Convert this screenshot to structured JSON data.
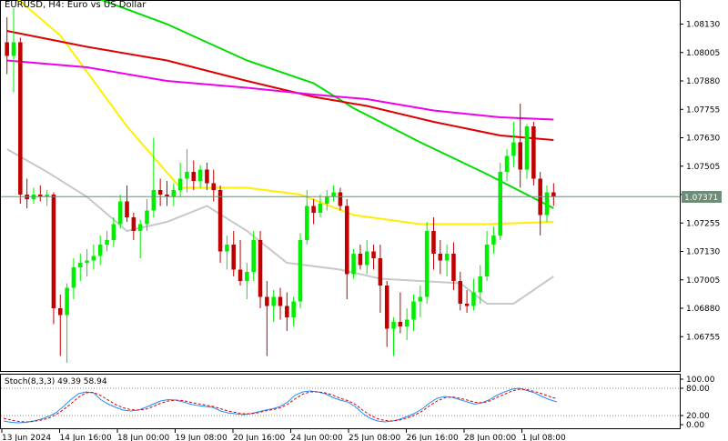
{
  "header": {
    "title": "EURUSD, H4:  Euro vs US Dollar"
  },
  "oscillator": {
    "label": "Stoch(8,3,3) 49.39 58.94",
    "levels": [
      "100.00",
      "80.00",
      "20.00",
      "0.00"
    ]
  },
  "current_price": "1.07371",
  "colors": {
    "bull": "#00ee00",
    "bear": "#c00000",
    "ma_green": "#00dd00",
    "ma_red": "#dd0000",
    "ma_magenta": "#ee00ee",
    "ma_yellow": "#ffee00",
    "ma_silver": "#c8c8c8",
    "stoch_main": "#1e90ff",
    "stoch_signal": "#dd0000",
    "price_line": "#6e8c78"
  },
  "chart_data": {
    "type": "candlestick",
    "symbol": "EURUSD",
    "timeframe": "H4",
    "ylim": [
      1.0662,
      1.0822
    ],
    "y_ticks": [
      "1.08130",
      "1.08005",
      "1.07880",
      "1.07755",
      "1.07630",
      "1.07505",
      "1.07380",
      "1.07255",
      "1.07130",
      "1.07005",
      "1.06880",
      "1.06755"
    ],
    "x_ticks": [
      "13 Jun 2024",
      "14 Jun 16:00",
      "18 Jun 00:00",
      "19 Jun 08:00",
      "20 Jun 16:00",
      "24 Jun 00:00",
      "25 Jun 08:00",
      "26 Jun 16:00",
      "28 Jun 00:00",
      "1 Jul 08:00"
    ],
    "candles": [
      {
        "o": 1.0805,
        "h": 1.0816,
        "l": 1.0791,
        "c": 1.0799
      },
      {
        "o": 1.0799,
        "h": 1.082,
        "l": 1.0783,
        "c": 1.0805
      },
      {
        "o": 1.0805,
        "h": 1.0807,
        "l": 1.0734,
        "c": 1.0738
      },
      {
        "o": 1.0738,
        "h": 1.0745,
        "l": 1.0732,
        "c": 1.0736
      },
      {
        "o": 1.0736,
        "h": 1.0741,
        "l": 1.0734,
        "c": 1.0738
      },
      {
        "o": 1.0738,
        "h": 1.0742,
        "l": 1.0735,
        "c": 1.0737
      },
      {
        "o": 1.0737,
        "h": 1.074,
        "l": 1.0733,
        "c": 1.0738
      },
      {
        "o": 1.0738,
        "h": 1.0739,
        "l": 1.0681,
        "c": 1.0688
      },
      {
        "o": 1.0688,
        "h": 1.0694,
        "l": 1.0667,
        "c": 1.0685
      },
      {
        "o": 1.0685,
        "h": 1.0699,
        "l": 1.0664,
        "c": 1.0697
      },
      {
        "o": 1.0697,
        "h": 1.071,
        "l": 1.0692,
        "c": 1.0706
      },
      {
        "o": 1.0706,
        "h": 1.0712,
        "l": 1.07,
        "c": 1.0708
      },
      {
        "o": 1.0708,
        "h": 1.0714,
        "l": 1.0702,
        "c": 1.0709
      },
      {
        "o": 1.0709,
        "h": 1.0716,
        "l": 1.0705,
        "c": 1.0711
      },
      {
        "o": 1.0711,
        "h": 1.072,
        "l": 1.0707,
        "c": 1.0716
      },
      {
        "o": 1.0716,
        "h": 1.0722,
        "l": 1.0713,
        "c": 1.0718
      },
      {
        "o": 1.0718,
        "h": 1.0728,
        "l": 1.0715,
        "c": 1.0725
      },
      {
        "o": 1.0725,
        "h": 1.0738,
        "l": 1.0723,
        "c": 1.0735
      },
      {
        "o": 1.0735,
        "h": 1.0742,
        "l": 1.0726,
        "c": 1.0728
      },
      {
        "o": 1.0728,
        "h": 1.073,
        "l": 1.0718,
        "c": 1.0722
      },
      {
        "o": 1.0722,
        "h": 1.0727,
        "l": 1.071,
        "c": 1.0725
      },
      {
        "o": 1.0725,
        "h": 1.0736,
        "l": 1.0722,
        "c": 1.0731
      },
      {
        "o": 1.0731,
        "h": 1.0763,
        "l": 1.0728,
        "c": 1.074
      },
      {
        "o": 1.074,
        "h": 1.0745,
        "l": 1.0733,
        "c": 1.0738
      },
      {
        "o": 1.0738,
        "h": 1.0744,
        "l": 1.0733,
        "c": 1.0737
      },
      {
        "o": 1.0737,
        "h": 1.0743,
        "l": 1.0733,
        "c": 1.074
      },
      {
        "o": 1.074,
        "h": 1.0752,
        "l": 1.0737,
        "c": 1.0745
      },
      {
        "o": 1.0745,
        "h": 1.0758,
        "l": 1.0739,
        "c": 1.0748
      },
      {
        "o": 1.0748,
        "h": 1.0753,
        "l": 1.074,
        "c": 1.0744
      },
      {
        "o": 1.0744,
        "h": 1.0751,
        "l": 1.0741,
        "c": 1.0749
      },
      {
        "o": 1.0749,
        "h": 1.0752,
        "l": 1.074,
        "c": 1.0743
      },
      {
        "o": 1.0743,
        "h": 1.0749,
        "l": 1.0735,
        "c": 1.074
      },
      {
        "o": 1.074,
        "h": 1.0742,
        "l": 1.0708,
        "c": 1.0713
      },
      {
        "o": 1.0713,
        "h": 1.072,
        "l": 1.0705,
        "c": 1.0716
      },
      {
        "o": 1.0716,
        "h": 1.0722,
        "l": 1.0702,
        "c": 1.0705
      },
      {
        "o": 1.0705,
        "h": 1.0718,
        "l": 1.0698,
        "c": 1.07
      },
      {
        "o": 1.07,
        "h": 1.0708,
        "l": 1.0692,
        "c": 1.0704
      },
      {
        "o": 1.0704,
        "h": 1.0722,
        "l": 1.07,
        "c": 1.0718
      },
      {
        "o": 1.0718,
        "h": 1.0722,
        "l": 1.0688,
        "c": 1.0693
      },
      {
        "o": 1.0693,
        "h": 1.07,
        "l": 1.0667,
        "c": 1.0689
      },
      {
        "o": 1.0689,
        "h": 1.0696,
        "l": 1.0682,
        "c": 1.0693
      },
      {
        "o": 1.0693,
        "h": 1.0697,
        "l": 1.0683,
        "c": 1.0689
      },
      {
        "o": 1.0689,
        "h": 1.0695,
        "l": 1.0678,
        "c": 1.0684
      },
      {
        "o": 1.0684,
        "h": 1.0693,
        "l": 1.068,
        "c": 1.0691
      },
      {
        "o": 1.0691,
        "h": 1.0721,
        "l": 1.0688,
        "c": 1.0718
      },
      {
        "o": 1.0718,
        "h": 1.074,
        "l": 1.0716,
        "c": 1.0733
      },
      {
        "o": 1.0733,
        "h": 1.0736,
        "l": 1.0725,
        "c": 1.073
      },
      {
        "o": 1.073,
        "h": 1.0738,
        "l": 1.0728,
        "c": 1.0734
      },
      {
        "o": 1.0734,
        "h": 1.074,
        "l": 1.0731,
        "c": 1.0737
      },
      {
        "o": 1.0737,
        "h": 1.0742,
        "l": 1.0735,
        "c": 1.0739
      },
      {
        "o": 1.0739,
        "h": 1.0741,
        "l": 1.0731,
        "c": 1.0733
      },
      {
        "o": 1.0733,
        "h": 1.0736,
        "l": 1.0692,
        "c": 1.0703
      },
      {
        "o": 1.0703,
        "h": 1.0714,
        "l": 1.0701,
        "c": 1.0712
      },
      {
        "o": 1.0712,
        "h": 1.0716,
        "l": 1.0705,
        "c": 1.0707
      },
      {
        "o": 1.0707,
        "h": 1.0718,
        "l": 1.0703,
        "c": 1.0713
      },
      {
        "o": 1.0713,
        "h": 1.0716,
        "l": 1.0705,
        "c": 1.071
      },
      {
        "o": 1.071,
        "h": 1.0716,
        "l": 1.0686,
        "c": 1.0698
      },
      {
        "o": 1.0698,
        "h": 1.07,
        "l": 1.0671,
        "c": 1.0679
      },
      {
        "o": 1.0679,
        "h": 1.0684,
        "l": 1.0667,
        "c": 1.0682
      },
      {
        "o": 1.0682,
        "h": 1.0695,
        "l": 1.0677,
        "c": 1.068
      },
      {
        "o": 1.068,
        "h": 1.0688,
        "l": 1.0674,
        "c": 1.0683
      },
      {
        "o": 1.0683,
        "h": 1.0694,
        "l": 1.0678,
        "c": 1.0691
      },
      {
        "o": 1.0691,
        "h": 1.0698,
        "l": 1.0684,
        "c": 1.0693
      },
      {
        "o": 1.0693,
        "h": 1.0726,
        "l": 1.069,
        "c": 1.0722
      },
      {
        "o": 1.0722,
        "h": 1.0728,
        "l": 1.0705,
        "c": 1.0712
      },
      {
        "o": 1.0712,
        "h": 1.0718,
        "l": 1.0703,
        "c": 1.0709
      },
      {
        "o": 1.0709,
        "h": 1.0716,
        "l": 1.0702,
        "c": 1.0712
      },
      {
        "o": 1.0712,
        "h": 1.0717,
        "l": 1.0696,
        "c": 1.07
      },
      {
        "o": 1.07,
        "h": 1.0704,
        "l": 1.0687,
        "c": 1.069
      },
      {
        "o": 1.069,
        "h": 1.0696,
        "l": 1.0686,
        "c": 1.0689
      },
      {
        "o": 1.0689,
        "h": 1.0701,
        "l": 1.0687,
        "c": 1.0695
      },
      {
        "o": 1.0695,
        "h": 1.0707,
        "l": 1.069,
        "c": 1.0702
      },
      {
        "o": 1.0702,
        "h": 1.0722,
        "l": 1.07,
        "c": 1.0716
      },
      {
        "o": 1.0716,
        "h": 1.0724,
        "l": 1.0712,
        "c": 1.072
      },
      {
        "o": 1.072,
        "h": 1.0752,
        "l": 1.0718,
        "c": 1.0748
      },
      {
        "o": 1.0748,
        "h": 1.0758,
        "l": 1.0744,
        "c": 1.0755
      },
      {
        "o": 1.0755,
        "h": 1.077,
        "l": 1.075,
        "c": 1.0761
      },
      {
        "o": 1.0761,
        "h": 1.0778,
        "l": 1.0741,
        "c": 1.0749
      },
      {
        "o": 1.0749,
        "h": 1.0769,
        "l": 1.0745,
        "c": 1.0768
      },
      {
        "o": 1.0768,
        "h": 1.077,
        "l": 1.0742,
        "c": 1.0745
      },
      {
        "o": 1.0745,
        "h": 1.0748,
        "l": 1.072,
        "c": 1.0729
      },
      {
        "o": 1.0729,
        "h": 1.0742,
        "l": 1.0726,
        "c": 1.0739
      },
      {
        "o": 1.0739,
        "h": 1.0743,
        "l": 1.0733,
        "c": 1.0737
      }
    ],
    "ma_lines": [
      {
        "color": "ma_yellow",
        "points": [
          [
            0,
            1.0828
          ],
          [
            8,
            1.0808
          ],
          [
            18,
            1.0768
          ],
          [
            26,
            1.0741
          ],
          [
            36,
            1.0741
          ],
          [
            44,
            1.0738
          ],
          [
            52,
            1.0729
          ],
          [
            62,
            1.0725
          ],
          [
            72,
            1.0725
          ],
          [
            82,
            1.0726
          ]
        ]
      },
      {
        "color": "ma_green",
        "points": [
          [
            0,
            1.083
          ],
          [
            12,
            1.0826
          ],
          [
            24,
            1.0813
          ],
          [
            36,
            1.0797
          ],
          [
            46,
            1.0787
          ],
          [
            52,
            1.0776
          ],
          [
            62,
            1.0761
          ],
          [
            72,
            1.0747
          ],
          [
            82,
            1.0732
          ]
        ]
      },
      {
        "color": "ma_red",
        "points": [
          [
            0,
            1.081
          ],
          [
            12,
            1.0803
          ],
          [
            24,
            1.0797
          ],
          [
            36,
            1.0788
          ],
          [
            46,
            1.0781
          ],
          [
            54,
            1.0777
          ],
          [
            64,
            1.077
          ],
          [
            74,
            1.0764
          ],
          [
            82,
            1.0762
          ]
        ]
      },
      {
        "color": "ma_magenta",
        "points": [
          [
            0,
            1.0797
          ],
          [
            12,
            1.0794
          ],
          [
            24,
            1.0788
          ],
          [
            36,
            1.0785
          ],
          [
            46,
            1.0782
          ],
          [
            54,
            1.078
          ],
          [
            64,
            1.0775
          ],
          [
            74,
            1.0772
          ],
          [
            82,
            1.0771
          ]
        ]
      },
      {
        "color": "ma_silver",
        "points": [
          [
            0,
            1.0758
          ],
          [
            6,
            1.0748
          ],
          [
            12,
            1.0737
          ],
          [
            18,
            1.0722
          ],
          [
            24,
            1.0726
          ],
          [
            30,
            1.0733
          ],
          [
            36,
            1.0722
          ],
          [
            42,
            1.0708
          ],
          [
            50,
            1.0705
          ],
          [
            56,
            1.0701
          ],
          [
            62,
            1.07
          ],
          [
            68,
            1.0699
          ],
          [
            72,
            1.069
          ],
          [
            76,
            1.069
          ],
          [
            82,
            1.0702
          ]
        ]
      }
    ],
    "stochastic": {
      "ylim": [
        0,
        100
      ],
      "main": [
        8,
        5,
        4,
        5,
        8,
        12,
        18,
        26,
        40,
        55,
        68,
        72,
        70,
        55,
        45,
        38,
        32,
        30,
        32,
        38,
        45,
        52,
        55,
        54,
        50,
        45,
        42,
        40,
        38,
        30,
        26,
        24,
        22,
        24,
        28,
        32,
        35,
        40,
        50,
        65,
        72,
        74,
        72,
        68,
        60,
        54,
        50,
        40,
        25,
        14,
        8,
        6,
        8,
        12,
        18,
        25,
        35,
        48,
        58,
        62,
        60,
        55,
        50,
        45,
        48,
        55,
        65,
        72,
        78,
        80,
        75,
        70,
        62,
        55,
        50
      ],
      "signal": [
        14,
        10,
        7,
        6,
        7,
        10,
        14,
        22,
        33,
        46,
        60,
        70,
        71,
        64,
        54,
        44,
        37,
        33,
        32,
        34,
        40,
        47,
        52,
        54,
        53,
        49,
        46,
        43,
        40,
        35,
        30,
        27,
        24,
        24,
        26,
        30,
        33,
        37,
        45,
        57,
        67,
        72,
        72,
        70,
        65,
        58,
        53,
        45,
        32,
        21,
        13,
        9,
        8,
        10,
        15,
        21,
        30,
        42,
        52,
        59,
        61,
        58,
        54,
        49,
        48,
        52,
        60,
        67,
        74,
        78,
        77,
        73,
        68,
        62,
        57
      ]
    }
  }
}
